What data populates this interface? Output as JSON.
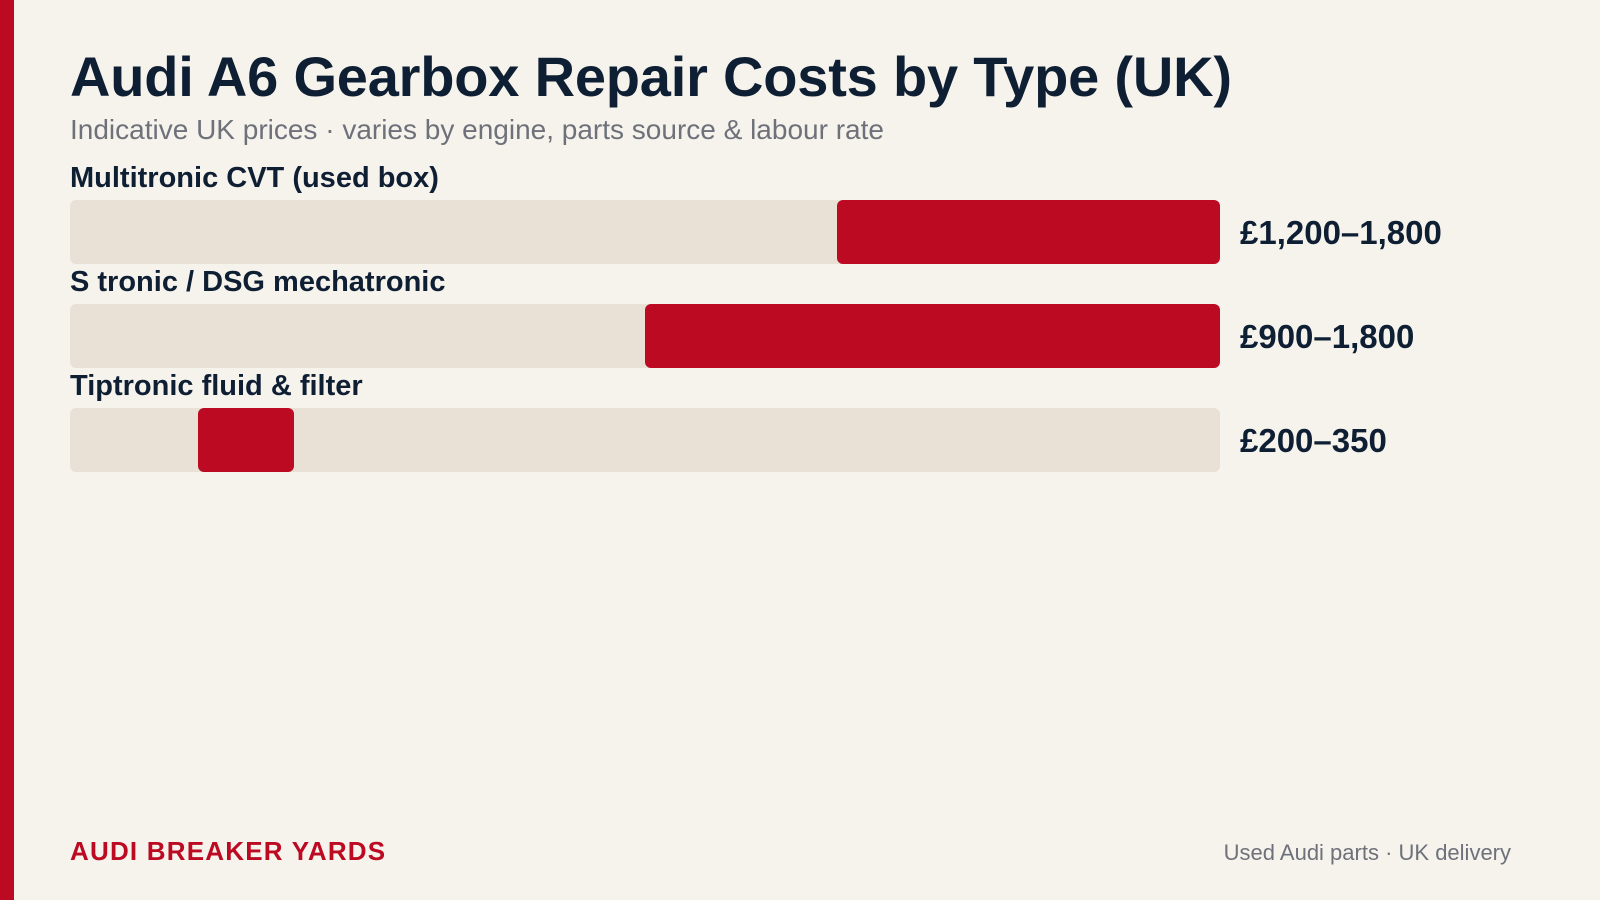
{
  "header": {
    "title": "Audi A6 Gearbox Repair Costs by Type (UK)",
    "subtitle": "Indicative UK prices · varies by engine, parts source & labour rate"
  },
  "colors": {
    "background": "#f6f3ed",
    "accent": "#bb0a21",
    "track": "#e9e1d6",
    "text_dark": "#0f1f33",
    "text_muted": "#6e717a"
  },
  "chart_data": {
    "type": "bar",
    "orientation": "horizontal",
    "subtype": "range",
    "xlim": [
      0,
      1800
    ],
    "unit": "£",
    "categories": [
      "Multitronic CVT (used box)",
      "S tronic / DSG mechatronic",
      "Tiptronic fluid & filter"
    ],
    "ranges": [
      [
        1200,
        1800
      ],
      [
        900,
        1800
      ],
      [
        200,
        350
      ]
    ],
    "value_labels": [
      "£1,200–1,800",
      "£900–1,800",
      "£200–350"
    ],
    "grid": false,
    "legend": "none"
  },
  "footer": {
    "brand": "AUDI BREAKER YARDS",
    "tagline": "Used Audi parts · UK delivery"
  }
}
